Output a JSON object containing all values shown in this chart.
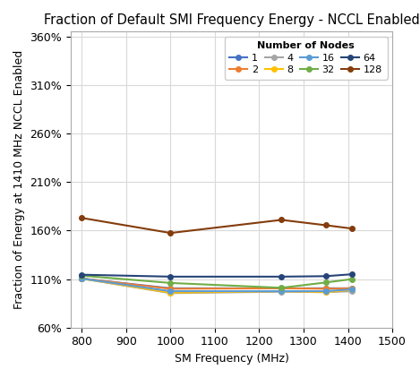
{
  "title": "Fraction of Default SMI Frequency Energy - NCCL Enabled",
  "xlabel": "SM Frequency (MHz)",
  "ylabel": "Fraction of Energy at 1410 MHz NCCL Enabled",
  "xlim": [
    775,
    1500
  ],
  "ylim": [
    0.6,
    3.65
  ],
  "xticks": [
    800,
    900,
    1000,
    1100,
    1200,
    1300,
    1400,
    1500
  ],
  "yticks": [
    0.6,
    1.1,
    1.6,
    2.1,
    2.6,
    3.1,
    3.6
  ],
  "ytick_labels": [
    "60%",
    "110%",
    "160%",
    "210%",
    "260%",
    "310%",
    "360%"
  ],
  "series": [
    {
      "label": "1",
      "color": "#4472C4",
      "marker": "o",
      "x": [
        800,
        1000,
        1250,
        1350,
        1410
      ],
      "y": [
        1.105,
        1.005,
        1.005,
        1.005,
        1.005
      ]
    },
    {
      "label": "2",
      "color": "#ED7D31",
      "marker": "o",
      "x": [
        800,
        1000,
        1250,
        1350,
        1410
      ],
      "y": [
        1.105,
        1.0,
        1.005,
        1.0,
        1.005
      ]
    },
    {
      "label": "4",
      "color": "#A5A5A5",
      "marker": "o",
      "x": [
        800,
        1000,
        1250,
        1350,
        1410
      ],
      "y": [
        1.105,
        0.955,
        0.97,
        0.965,
        0.975
      ]
    },
    {
      "label": "8",
      "color": "#FFC000",
      "marker": "o",
      "x": [
        800,
        1000,
        1250,
        1350,
        1410
      ],
      "y": [
        1.105,
        0.96,
        0.975,
        0.965,
        0.99
      ]
    },
    {
      "label": "16",
      "color": "#5B9BD5",
      "marker": "o",
      "x": [
        800,
        1000,
        1250,
        1350,
        1410
      ],
      "y": [
        1.105,
        0.975,
        0.975,
        0.975,
        0.995
      ]
    },
    {
      "label": "32",
      "color": "#70AD47",
      "marker": "o",
      "x": [
        800,
        1000,
        1250,
        1350,
        1410
      ],
      "y": [
        1.135,
        1.06,
        1.01,
        1.065,
        1.1
      ]
    },
    {
      "label": "64",
      "color": "#264478",
      "marker": "o",
      "x": [
        800,
        1000,
        1250,
        1350,
        1410
      ],
      "y": [
        1.145,
        1.125,
        1.125,
        1.13,
        1.15
      ]
    },
    {
      "label": "128",
      "color": "#843C0C",
      "marker": "o",
      "x": [
        800,
        1000,
        1250,
        1350,
        1410
      ],
      "y": [
        1.73,
        1.575,
        1.71,
        1.655,
        1.62
      ]
    }
  ],
  "legend_title": "Number of Nodes",
  "background_color": "#FFFFFF",
  "grid_color": "#D9D9D9",
  "title_fontsize": 10.5,
  "label_fontsize": 9,
  "tick_fontsize": 9,
  "legend_fontsize": 8
}
